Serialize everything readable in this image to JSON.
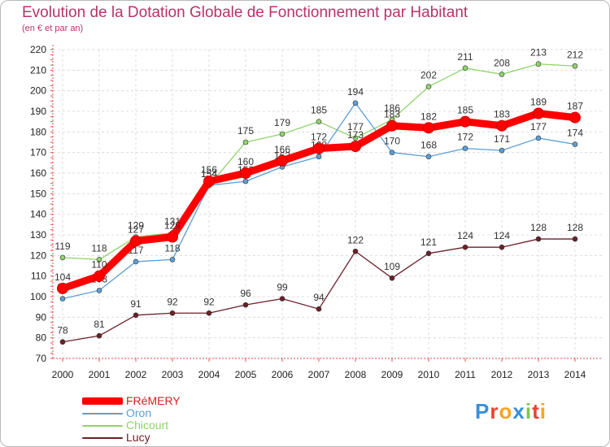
{
  "chart_data": {
    "type": "line",
    "title": "Evolution de la Dotation Globale de Fonctionnement par Habitant",
    "subtitle": "(en € et par an)",
    "categories": [
      "2000",
      "2001",
      "2002",
      "2003",
      "2004",
      "2005",
      "2006",
      "2007",
      "2008",
      "2009",
      "2010",
      "2011",
      "2012",
      "2013",
      "2014"
    ],
    "ylim": [
      70,
      220
    ],
    "yticks": [
      70,
      80,
      90,
      100,
      110,
      120,
      130,
      140,
      150,
      160,
      170,
      180,
      190,
      200,
      210,
      220
    ],
    "grid": true,
    "legend_position": "bottom-left",
    "series": [
      {
        "name": "Chicourt",
        "color": "#8fd36b",
        "values": [
          119,
          118,
          129,
          131,
          154,
          175,
          179,
          185,
          177,
          186,
          202,
          211,
          208,
          213,
          212
        ]
      },
      {
        "name": "Oron",
        "color": "#5b9fd6",
        "values": [
          99,
          103,
          117,
          118,
          154,
          156,
          163,
          168,
          194,
          170,
          168,
          172,
          171,
          177,
          174
        ]
      },
      {
        "name": "Lucy",
        "color": "#6b2028",
        "values": [
          78,
          81,
          91,
          92,
          92,
          96,
          99,
          94,
          122,
          109,
          121,
          124,
          124,
          128,
          128
        ]
      },
      {
        "name": "FRéMERY",
        "color": "#ff0000",
        "values": [
          104,
          110,
          127,
          129,
          156,
          160,
          166,
          172,
          173,
          183,
          182,
          185,
          183,
          189,
          187
        ]
      }
    ],
    "legend_order": [
      "FRéMERY",
      "Oron",
      "Chicourt",
      "Lucy"
    ]
  },
  "brand": {
    "text": "Proxiti",
    "letters": [
      {
        "ch": "P",
        "color": "#3a8fd9"
      },
      {
        "ch": "r",
        "color": "#e8432e"
      },
      {
        "ch": "o",
        "color": "#f5a623"
      },
      {
        "ch": "x",
        "color": "#3a8fd9"
      },
      {
        "ch": "i",
        "color": "#7ac943"
      },
      {
        "ch": "t",
        "color": "#e8432e"
      },
      {
        "ch": "i",
        "color": "#f5a623"
      }
    ]
  }
}
